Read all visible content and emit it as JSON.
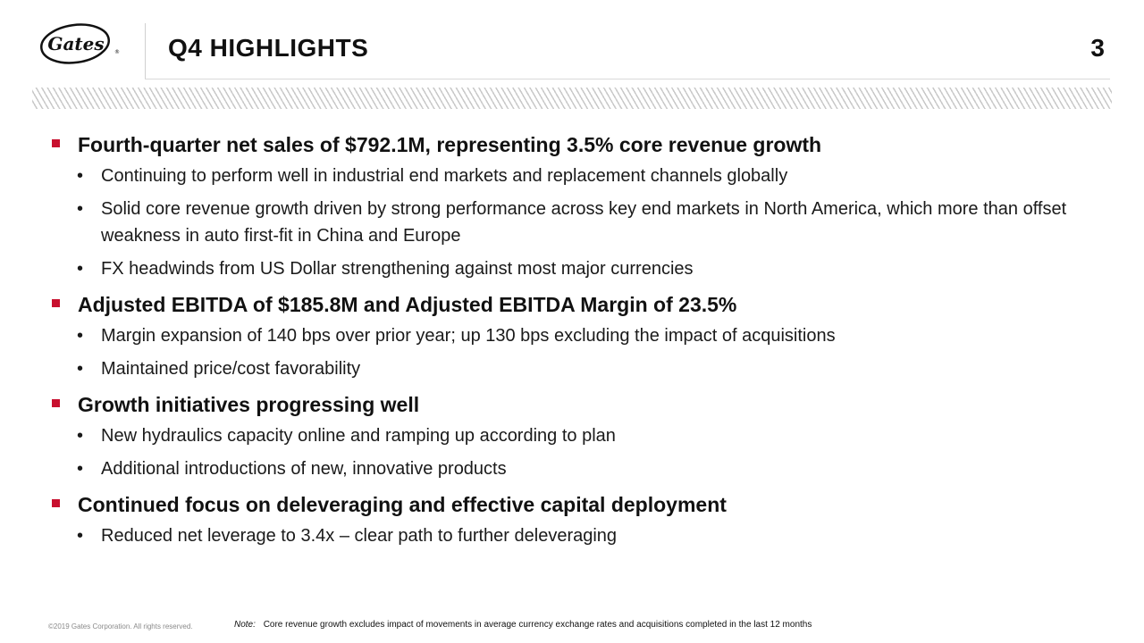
{
  "header": {
    "logo_text": "Gates",
    "title": "Q4 HIGHLIGHTS",
    "page_number": "3"
  },
  "sections": [
    {
      "heading": "Fourth-quarter net sales of $792.1M, representing 3.5% core revenue growth",
      "bullets": [
        "Continuing to perform well in industrial end markets and replacement channels globally",
        "Solid core revenue growth driven by strong performance across key end markets in North America, which more than offset weakness in auto first-fit in China and Europe",
        "FX headwinds from US Dollar strengthening against most major currencies"
      ]
    },
    {
      "heading": "Adjusted EBITDA of $185.8M and Adjusted EBITDA Margin of 23.5%",
      "bullets": [
        "Margin expansion of 140 bps over prior year; up 130 bps excluding the impact of acquisitions",
        "Maintained price/cost favorability"
      ]
    },
    {
      "heading": "Growth initiatives progressing well",
      "bullets": [
        "New hydraulics capacity online and ramping up according to plan",
        "Additional introductions of new, innovative products"
      ]
    },
    {
      "heading": "Continued focus on deleveraging and effective capital deployment",
      "bullets": [
        "Reduced net leverage to 3.4x – clear path to further deleveraging"
      ]
    }
  ],
  "footer": {
    "copyright": "©2019 Gates Corporation. All rights reserved.",
    "note_label": "Note:",
    "note_text": "Core revenue growth excludes impact of movements in average currency exchange rates and acquisitions completed in the last 12 months"
  },
  "colors": {
    "accent": "#c8102e",
    "text": "#111111"
  }
}
